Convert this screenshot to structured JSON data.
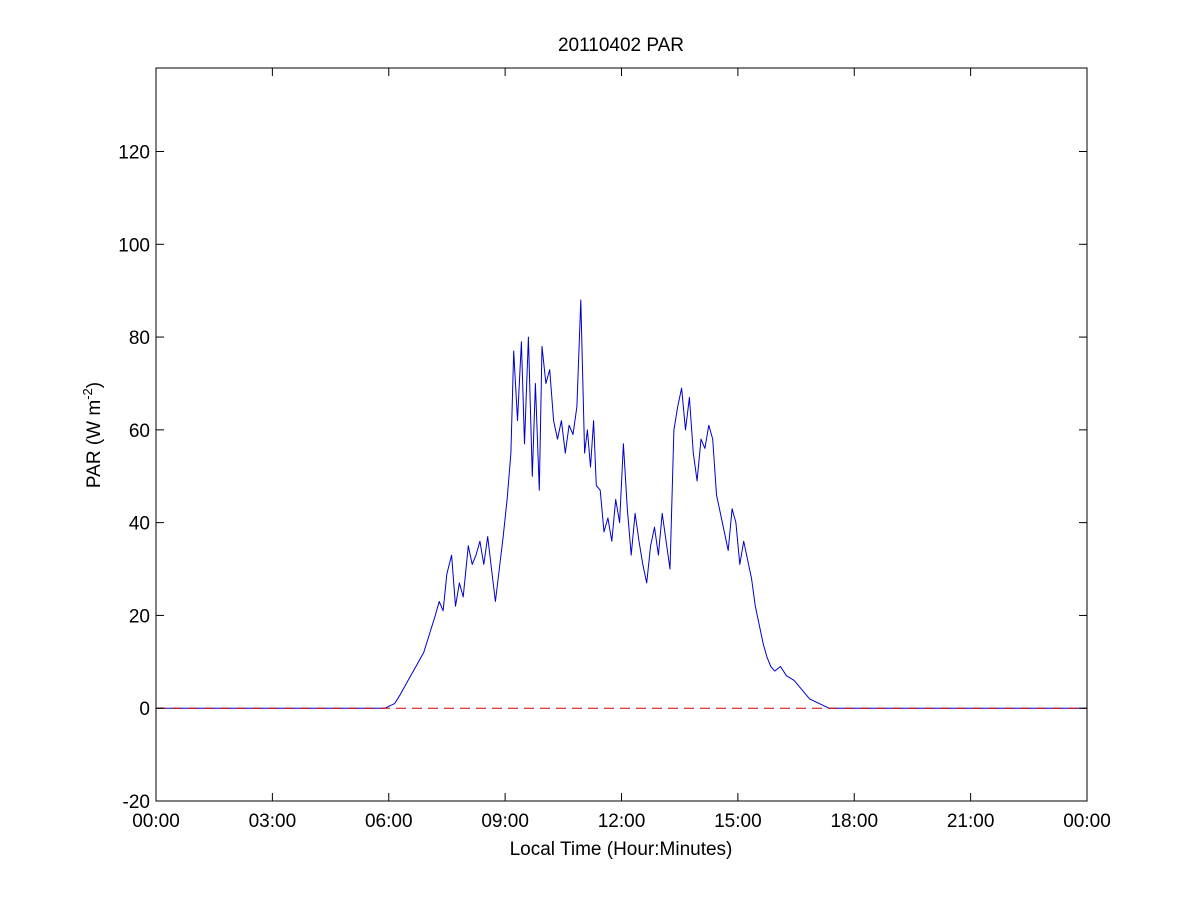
{
  "chart_data": {
    "type": "line",
    "title": "20110402 PAR",
    "xlabel": "Local Time (Hour:Minutes)",
    "ylabel": "PAR (W m",
    "ylabel_sup": "-2",
    "ylabel_close": ")",
    "xlim": [
      0,
      24
    ],
    "ylim": [
      -20,
      138
    ],
    "x_ticks": [
      {
        "value": 0,
        "label": "00:00"
      },
      {
        "value": 3,
        "label": "03:00"
      },
      {
        "value": 6,
        "label": "06:00"
      },
      {
        "value": 9,
        "label": "09:00"
      },
      {
        "value": 12,
        "label": "12:00"
      },
      {
        "value": 15,
        "label": "15:00"
      },
      {
        "value": 18,
        "label": "18:00"
      },
      {
        "value": 21,
        "label": "21:00"
      },
      {
        "value": 24,
        "label": "00:00"
      }
    ],
    "y_ticks": [
      {
        "value": -20,
        "label": "-20"
      },
      {
        "value": 0,
        "label": "0"
      },
      {
        "value": 20,
        "label": "20"
      },
      {
        "value": 40,
        "label": "40"
      },
      {
        "value": 60,
        "label": "60"
      },
      {
        "value": 80,
        "label": "80"
      },
      {
        "value": 100,
        "label": "100"
      },
      {
        "value": 120,
        "label": "120"
      }
    ],
    "grid": false,
    "series": [
      {
        "color": "#0000cc",
        "style": "solid",
        "x": [
          0,
          5.9,
          6.15,
          6.3,
          6.5,
          6.7,
          6.9,
          7.05,
          7.2,
          7.3,
          7.4,
          7.5,
          7.62,
          7.72,
          7.82,
          7.92,
          8.05,
          8.15,
          8.25,
          8.35,
          8.45,
          8.55,
          8.65,
          8.75,
          8.85,
          8.95,
          9.05,
          9.15,
          9.22,
          9.32,
          9.42,
          9.5,
          9.6,
          9.7,
          9.78,
          9.88,
          9.95,
          10.05,
          10.15,
          10.25,
          10.35,
          10.45,
          10.55,
          10.65,
          10.75,
          10.85,
          10.95,
          11.05,
          11.12,
          11.2,
          11.28,
          11.35,
          11.45,
          11.55,
          11.65,
          11.75,
          11.85,
          11.95,
          12.05,
          12.15,
          12.25,
          12.35,
          12.45,
          12.55,
          12.65,
          12.75,
          12.85,
          12.95,
          13.05,
          13.15,
          13.25,
          13.35,
          13.45,
          13.55,
          13.65,
          13.75,
          13.85,
          13.95,
          14.05,
          14.15,
          14.25,
          14.35,
          14.45,
          14.55,
          14.65,
          14.75,
          14.85,
          14.95,
          15.05,
          15.15,
          15.25,
          15.35,
          15.45,
          15.55,
          15.65,
          15.75,
          15.85,
          15.95,
          16.1,
          16.25,
          16.45,
          16.65,
          16.85,
          17.1,
          17.35,
          17.6,
          17.85,
          18.05,
          18.2,
          18.3,
          24
        ],
        "y": [
          0,
          0,
          1,
          3,
          6,
          9,
          12,
          16,
          20,
          23,
          21,
          29,
          33,
          22,
          27,
          24,
          35,
          31,
          33,
          36,
          31,
          37,
          30,
          23,
          30,
          37,
          45,
          55,
          77,
          62,
          79,
          57,
          80,
          50,
          70,
          47,
          78,
          70,
          73,
          62,
          58,
          62,
          55,
          61,
          59,
          65,
          88,
          55,
          60,
          52,
          62,
          48,
          47,
          38,
          41,
          36,
          45,
          40,
          57,
          43,
          33,
          42,
          36,
          31,
          27,
          35,
          39,
          33,
          42,
          36,
          30,
          60,
          65,
          69,
          60,
          67,
          55,
          49,
          58,
          56,
          61,
          58,
          46,
          42,
          38,
          34,
          43,
          40,
          31,
          36,
          32,
          28,
          22,
          18,
          14,
          11,
          9,
          8,
          9,
          7,
          6,
          4,
          2,
          1,
          0,
          0,
          0,
          0,
          0,
          0,
          0
        ]
      },
      {
        "color": "#cc0000",
        "style": "dashed",
        "x": [
          0,
          24
        ],
        "y": [
          0,
          0
        ]
      }
    ]
  }
}
